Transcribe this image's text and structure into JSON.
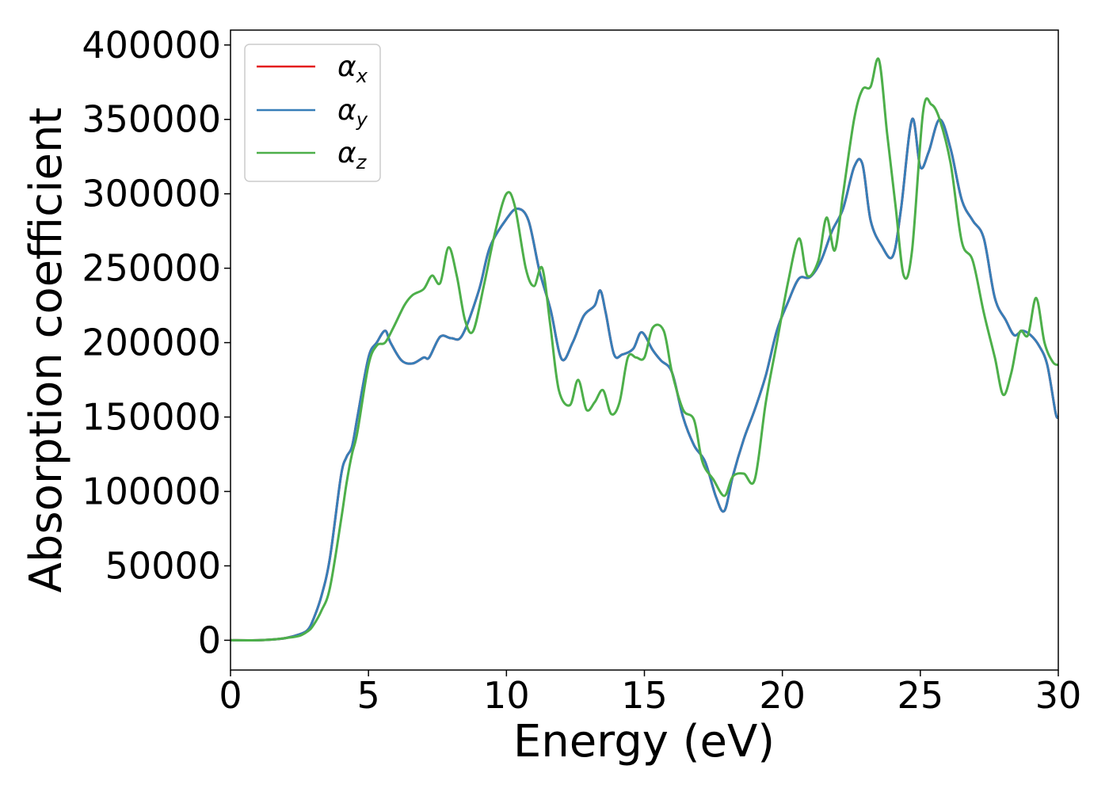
{
  "chart_data": {
    "type": "line",
    "title": "",
    "xlabel": "Energy (eV)",
    "ylabel": "Absorption coefficient",
    "xlim": [
      0,
      30
    ],
    "ylim": [
      -20000,
      410000
    ],
    "xticks": [
      "0",
      "5",
      "10",
      "15",
      "20",
      "25",
      "30"
    ],
    "yticks": [
      "0",
      "50000",
      "100000",
      "150000",
      "200000",
      "250000",
      "300000",
      "350000",
      "400000"
    ],
    "grid": false,
    "legend": {
      "placement": "top-left",
      "entries": [
        {
          "symbol": "α",
          "sub": "x"
        },
        {
          "symbol": "α",
          "sub": "y"
        },
        {
          "symbol": "α",
          "sub": "z"
        }
      ]
    },
    "series": [
      {
        "key": "alpha_x",
        "color": "#e41a1c",
        "x": [
          0,
          1,
          1.5,
          2,
          2.5,
          2.8,
          3,
          3.3,
          3.6,
          4,
          4.2,
          4.4,
          4.6,
          5,
          5.3,
          5.6,
          5.8,
          6.2,
          6.6,
          7,
          7.2,
          7.6,
          8,
          8.4,
          9,
          9.4,
          10,
          10.4,
          10.8,
          11.2,
          11.6,
          12,
          12.4,
          12.8,
          13.2,
          13.4,
          13.6,
          13.9,
          14.2,
          14.6,
          14.9,
          15.3,
          15.6,
          16,
          16.4,
          16.8,
          17.2,
          17.6,
          17.9,
          18.2,
          18.6,
          19,
          19.4,
          19.8,
          20.2,
          20.6,
          21,
          21.4,
          21.8,
          22.2,
          22.6,
          22.9,
          23.2,
          23.6,
          24,
          24.3,
          24.7,
          25,
          25.3,
          25.7,
          26.1,
          26.5,
          26.9,
          27.3,
          27.7,
          28.1,
          28.4,
          28.7,
          29,
          29.3,
          29.6,
          29.9,
          30
        ],
        "y": [
          0,
          0,
          500,
          1500,
          4000,
          7000,
          14000,
          30000,
          55000,
          110000,
          123000,
          130000,
          150000,
          190000,
          200000,
          208000,
          200000,
          188000,
          186000,
          190000,
          190000,
          204000,
          203000,
          205000,
          235000,
          264000,
          283000,
          290000,
          282000,
          248000,
          222000,
          189000,
          200000,
          218000,
          225000,
          235000,
          220000,
          192000,
          192000,
          196000,
          207000,
          195000,
          188000,
          180000,
          150000,
          131000,
          120000,
          96000,
          87000,
          110000,
          135000,
          155000,
          178000,
          208000,
          227000,
          243000,
          244000,
          255000,
          275000,
          290000,
          318000,
          320000,
          282000,
          265000,
          258000,
          290000,
          350000,
          318000,
          328000,
          350000,
          330000,
          296000,
          282000,
          270000,
          230000,
          215000,
          205000,
          208000,
          205000,
          198000,
          185000,
          153000,
          150000
        ]
      },
      {
        "key": "alpha_y",
        "color": "#377eb8",
        "x": [
          0,
          1,
          1.5,
          2,
          2.5,
          2.8,
          3,
          3.3,
          3.6,
          4,
          4.2,
          4.4,
          4.6,
          5,
          5.3,
          5.6,
          5.8,
          6.2,
          6.6,
          7,
          7.2,
          7.6,
          8,
          8.4,
          9,
          9.4,
          10,
          10.4,
          10.8,
          11.2,
          11.6,
          12,
          12.4,
          12.8,
          13.2,
          13.4,
          13.6,
          13.9,
          14.2,
          14.6,
          14.9,
          15.3,
          15.6,
          16,
          16.4,
          16.8,
          17.2,
          17.6,
          17.9,
          18.2,
          18.6,
          19,
          19.4,
          19.8,
          20.2,
          20.6,
          21,
          21.4,
          21.8,
          22.2,
          22.6,
          22.9,
          23.2,
          23.6,
          24,
          24.3,
          24.7,
          25,
          25.3,
          25.7,
          26.1,
          26.5,
          26.9,
          27.3,
          27.7,
          28.1,
          28.4,
          28.7,
          29,
          29.3,
          29.6,
          29.9,
          30
        ],
        "y": [
          0,
          0,
          500,
          1500,
          4000,
          7000,
          14000,
          30000,
          55000,
          110000,
          123000,
          130000,
          150000,
          190000,
          200000,
          208000,
          200000,
          188000,
          186000,
          190000,
          190000,
          204000,
          203000,
          205000,
          235000,
          264000,
          283000,
          290000,
          282000,
          248000,
          222000,
          189000,
          200000,
          218000,
          225000,
          235000,
          220000,
          192000,
          192000,
          196000,
          207000,
          195000,
          188000,
          180000,
          150000,
          131000,
          120000,
          96000,
          87000,
          110000,
          135000,
          155000,
          178000,
          208000,
          227000,
          243000,
          244000,
          255000,
          275000,
          290000,
          318000,
          320000,
          282000,
          265000,
          258000,
          290000,
          350000,
          318000,
          328000,
          350000,
          330000,
          296000,
          282000,
          270000,
          230000,
          215000,
          205000,
          208000,
          205000,
          198000,
          185000,
          153000,
          150000
        ]
      },
      {
        "key": "alpha_z",
        "color": "#4daf4a",
        "x": [
          0,
          1,
          1.5,
          2,
          2.5,
          2.8,
          3,
          3.3,
          3.6,
          4,
          4.2,
          4.4,
          4.6,
          5,
          5.3,
          5.6,
          5.9,
          6.3,
          6.6,
          7,
          7.3,
          7.6,
          7.9,
          8.2,
          8.5,
          8.8,
          9.2,
          9.6,
          10,
          10.3,
          10.7,
          11,
          11.3,
          11.6,
          11.9,
          12.3,
          12.6,
          12.9,
          13.2,
          13.5,
          13.8,
          14.1,
          14.4,
          14.7,
          15,
          15.3,
          15.7,
          16,
          16.4,
          16.8,
          17.1,
          17.5,
          17.9,
          18.2,
          18.6,
          19,
          19.4,
          19.8,
          20.2,
          20.6,
          20.9,
          21.3,
          21.6,
          21.9,
          22.2,
          22.6,
          22.9,
          23.2,
          23.5,
          23.8,
          24.1,
          24.4,
          24.7,
          25.1,
          25.4,
          25.7,
          26.1,
          26.5,
          26.9,
          27.3,
          27.7,
          28,
          28.3,
          28.6,
          28.9,
          29.2,
          29.5,
          29.8,
          30
        ],
        "y": [
          0,
          0,
          500,
          1500,
          3000,
          6000,
          10000,
          20000,
          35000,
          80000,
          105000,
          125000,
          140000,
          185000,
          198000,
          200000,
          210000,
          225000,
          232000,
          236000,
          245000,
          240000,
          264000,
          245000,
          215000,
          208000,
          240000,
          275000,
          300000,
          292000,
          250000,
          238000,
          250000,
          210000,
          168000,
          158000,
          175000,
          155000,
          160000,
          168000,
          152000,
          160000,
          190000,
          190000,
          190000,
          210000,
          208000,
          180000,
          155000,
          148000,
          120000,
          108000,
          97000,
          110000,
          112000,
          108000,
          160000,
          200000,
          240000,
          270000,
          245000,
          255000,
          284000,
          262000,
          300000,
          350000,
          370000,
          372000,
          390000,
          340000,
          292000,
          245000,
          262000,
          355000,
          360000,
          350000,
          320000,
          268000,
          255000,
          220000,
          190000,
          165000,
          180000,
          207000,
          205000,
          230000,
          200000,
          187000,
          185000
        ]
      }
    ]
  }
}
